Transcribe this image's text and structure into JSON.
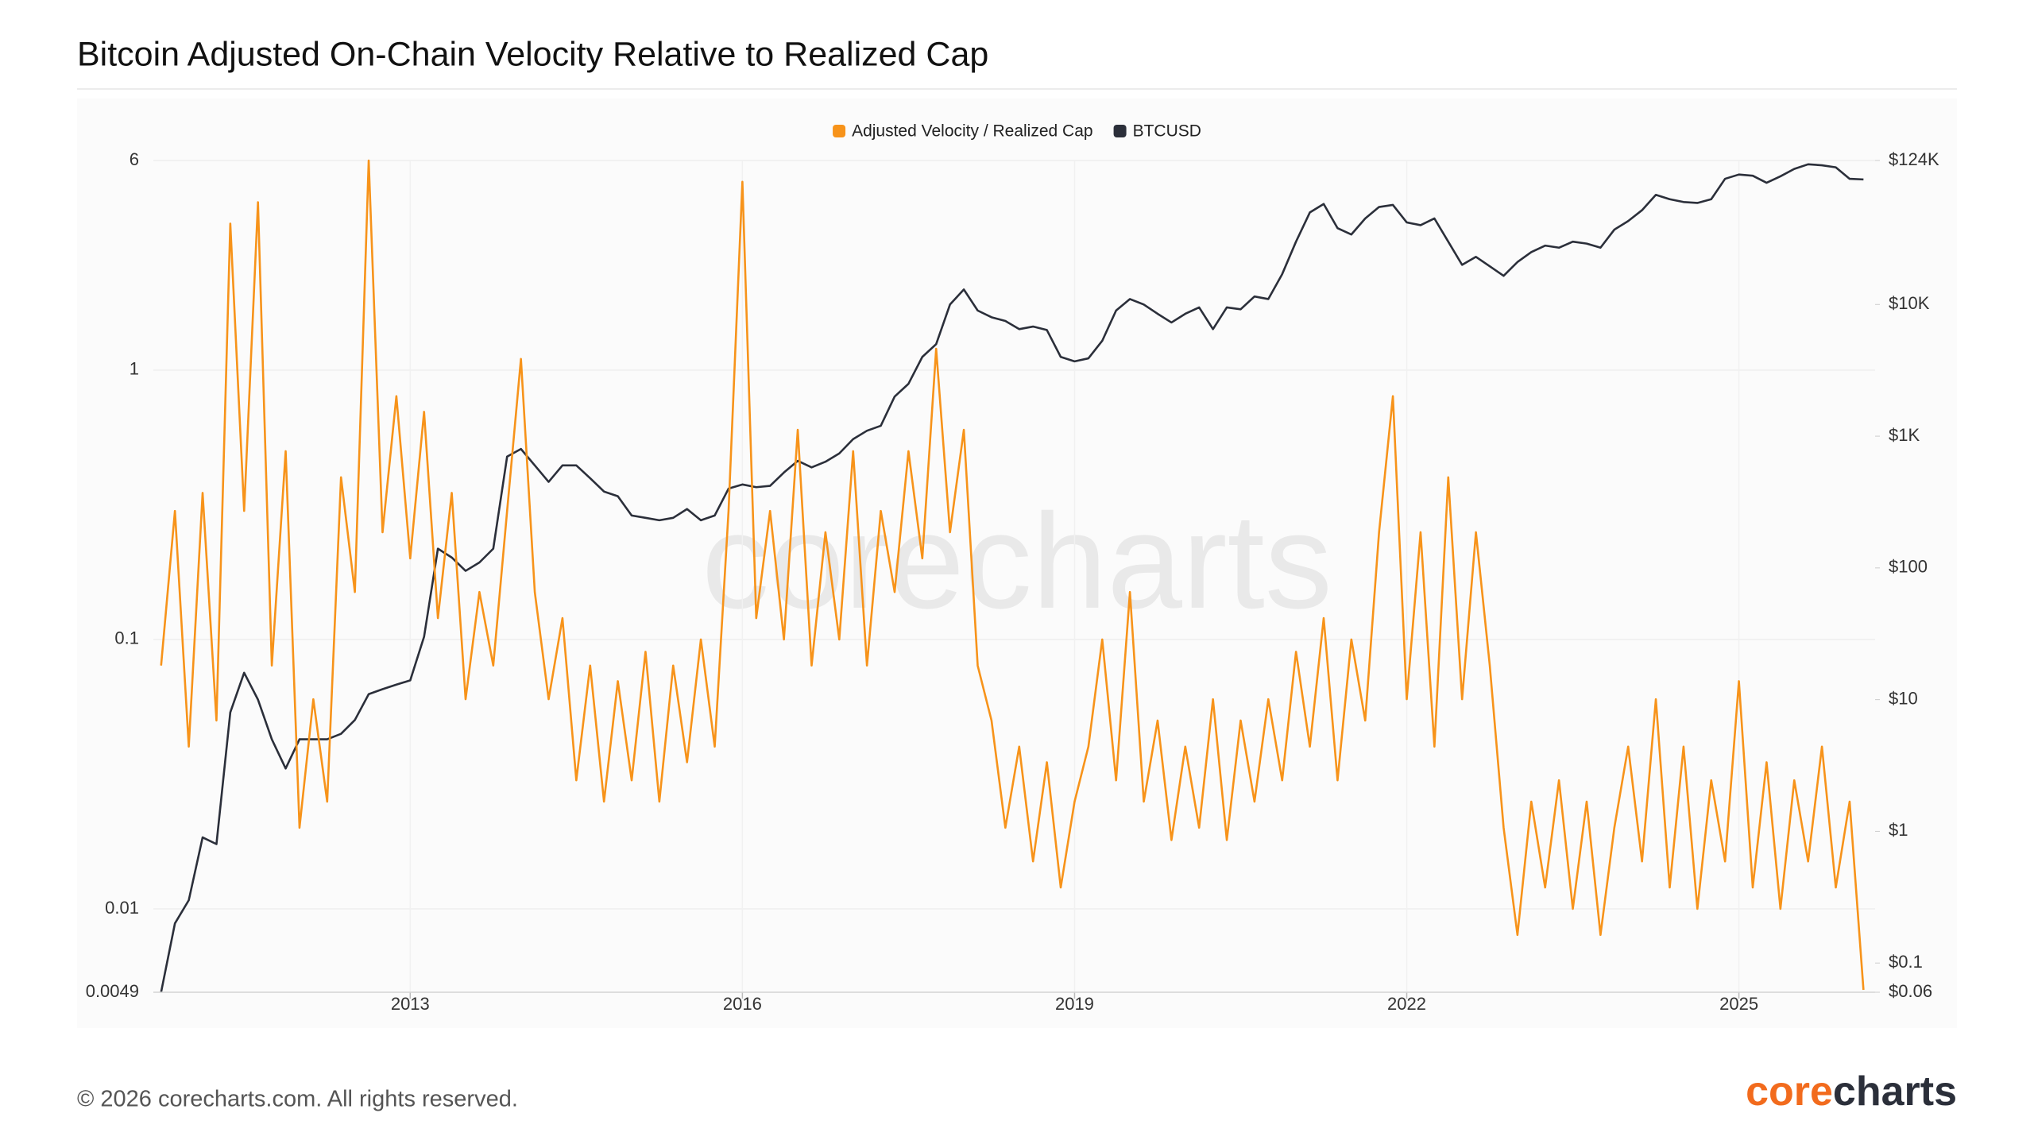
{
  "chart_data": {
    "type": "line",
    "title": "Bitcoin Adjusted On-Chain Velocity Relative to Realized Cap",
    "watermark": "corecharts",
    "footer": "© 2026 corecharts.com. All rights reserved.",
    "logo": {
      "first": "core",
      "second": "charts"
    },
    "legend": "top",
    "grid": true,
    "y_scale": "log",
    "y2_scale": "log",
    "xlim": [
      2010.68,
      2026.23
    ],
    "xticks": [
      2013,
      2016,
      2019,
      2022,
      2025
    ],
    "ylim": [
      0.0049,
      6
    ],
    "yticks": [
      6,
      1,
      0.1,
      0.01,
      0.0049
    ],
    "y2lim": [
      0.06,
      124000
    ],
    "y2ticks": [
      {
        "value": 124000,
        "label": "$124K"
      },
      {
        "value": 10000,
        "label": "$10K"
      },
      {
        "value": 1000,
        "label": "$1K"
      },
      {
        "value": 100,
        "label": "$100"
      },
      {
        "value": 10,
        "label": "$10"
      },
      {
        "value": 1,
        "label": "$1"
      },
      {
        "value": 0.1,
        "label": "$0.1"
      },
      {
        "value": 0.06,
        "label": "$0.06"
      }
    ],
    "x": [
      2010.75,
      2010.875,
      2011.0,
      2011.125,
      2011.25,
      2011.375,
      2011.5,
      2011.625,
      2011.75,
      2011.875,
      2012.0,
      2012.125,
      2012.25,
      2012.375,
      2012.5,
      2012.625,
      2012.75,
      2012.875,
      2013.0,
      2013.125,
      2013.25,
      2013.375,
      2013.5,
      2013.625,
      2013.75,
      2013.875,
      2014.0,
      2014.125,
      2014.25,
      2014.375,
      2014.5,
      2014.625,
      2014.75,
      2014.875,
      2015.0,
      2015.125,
      2015.25,
      2015.375,
      2015.5,
      2015.625,
      2015.75,
      2015.875,
      2016.0,
      2016.125,
      2016.25,
      2016.375,
      2016.5,
      2016.625,
      2016.75,
      2016.875,
      2017.0,
      2017.125,
      2017.25,
      2017.375,
      2017.5,
      2017.625,
      2017.75,
      2017.875,
      2018.0,
      2018.125,
      2018.25,
      2018.375,
      2018.5,
      2018.625,
      2018.75,
      2018.875,
      2019.0,
      2019.125,
      2019.25,
      2019.375,
      2019.5,
      2019.625,
      2019.75,
      2019.875,
      2020.0,
      2020.125,
      2020.25,
      2020.375,
      2020.5,
      2020.625,
      2020.75,
      2020.875,
      2021.0,
      2021.125,
      2021.25,
      2021.375,
      2021.5,
      2021.625,
      2021.75,
      2021.875,
      2022.0,
      2022.125,
      2022.25,
      2022.375,
      2022.5,
      2022.625,
      2022.75,
      2022.875,
      2023.0,
      2023.125,
      2023.25,
      2023.375,
      2023.5,
      2023.625,
      2023.75,
      2023.875,
      2024.0,
      2024.125,
      2024.25,
      2024.375,
      2024.5,
      2024.625,
      2024.75,
      2024.875,
      2025.0,
      2025.125,
      2025.25,
      2025.375,
      2025.5,
      2025.625,
      2025.75,
      2025.875,
      2026.0,
      2026.125
    ],
    "series": [
      {
        "name": "Adjusted Velocity / Realized Cap",
        "color": "#f7931a",
        "axis": "y",
        "values": [
          0.08,
          0.3,
          0.04,
          0.35,
          0.05,
          3.5,
          0.3,
          4.2,
          0.08,
          0.5,
          0.02,
          0.06,
          0.025,
          0.4,
          0.15,
          6,
          0.25,
          0.8,
          0.2,
          0.7,
          0.12,
          0.35,
          0.06,
          0.15,
          0.08,
          0.3,
          1.1,
          0.15,
          0.06,
          0.12,
          0.03,
          0.08,
          0.025,
          0.07,
          0.03,
          0.09,
          0.025,
          0.08,
          0.035,
          0.1,
          0.04,
          0.3,
          5,
          0.12,
          0.3,
          0.1,
          0.6,
          0.08,
          0.25,
          0.1,
          0.5,
          0.08,
          0.3,
          0.15,
          0.5,
          0.2,
          1.2,
          0.25,
          0.6,
          0.08,
          0.05,
          0.02,
          0.04,
          0.015,
          0.035,
          0.012,
          0.025,
          0.04,
          0.1,
          0.03,
          0.15,
          0.025,
          0.05,
          0.018,
          0.04,
          0.02,
          0.06,
          0.018,
          0.05,
          0.025,
          0.06,
          0.03,
          0.09,
          0.04,
          0.12,
          0.03,
          0.1,
          0.05,
          0.25,
          0.8,
          0.06,
          0.25,
          0.04,
          0.4,
          0.06,
          0.25,
          0.08,
          0.02,
          0.008,
          0.025,
          0.012,
          0.03,
          0.01,
          0.025,
          0.008,
          0.02,
          0.04,
          0.015,
          0.06,
          0.012,
          0.04,
          0.01,
          0.03,
          0.015,
          0.07,
          0.012,
          0.035,
          0.01,
          0.03,
          0.015,
          0.04,
          0.012,
          0.025,
          0.005
        ]
      },
      {
        "name": "BTCUSD",
        "color": "#2b2f3a",
        "axis": "y2",
        "values": [
          0.06,
          0.2,
          0.3,
          0.9,
          0.8,
          8,
          16,
          10,
          5,
          3,
          5,
          5,
          5,
          5.5,
          7,
          11,
          12,
          13,
          14,
          30,
          140,
          120,
          95,
          110,
          140,
          700,
          800,
          600,
          450,
          600,
          600,
          480,
          380,
          350,
          250,
          240,
          230,
          240,
          280,
          230,
          250,
          400,
          430,
          410,
          420,
          530,
          650,
          580,
          640,
          740,
          950,
          1100,
          1200,
          2000,
          2500,
          4000,
          5000,
          10000,
          13000,
          9000,
          8000,
          7500,
          6500,
          6800,
          6400,
          4000,
          3700,
          3900,
          5300,
          9000,
          11000,
          10000,
          8500,
          7300,
          8500,
          9500,
          6500,
          9500,
          9200,
          11500,
          11000,
          17000,
          30000,
          50000,
          58000,
          38000,
          34000,
          45000,
          55000,
          57000,
          42000,
          40000,
          45000,
          30000,
          20000,
          23000,
          19500,
          16500,
          21000,
          25000,
          28000,
          27000,
          30000,
          29000,
          27000,
          37000,
          43000,
          52000,
          68000,
          63000,
          60000,
          59000,
          63000,
          90000,
          97000,
          95000,
          84000,
          94000,
          107000,
          116000,
          114000,
          110000,
          90000,
          89000
        ]
      }
    ]
  }
}
